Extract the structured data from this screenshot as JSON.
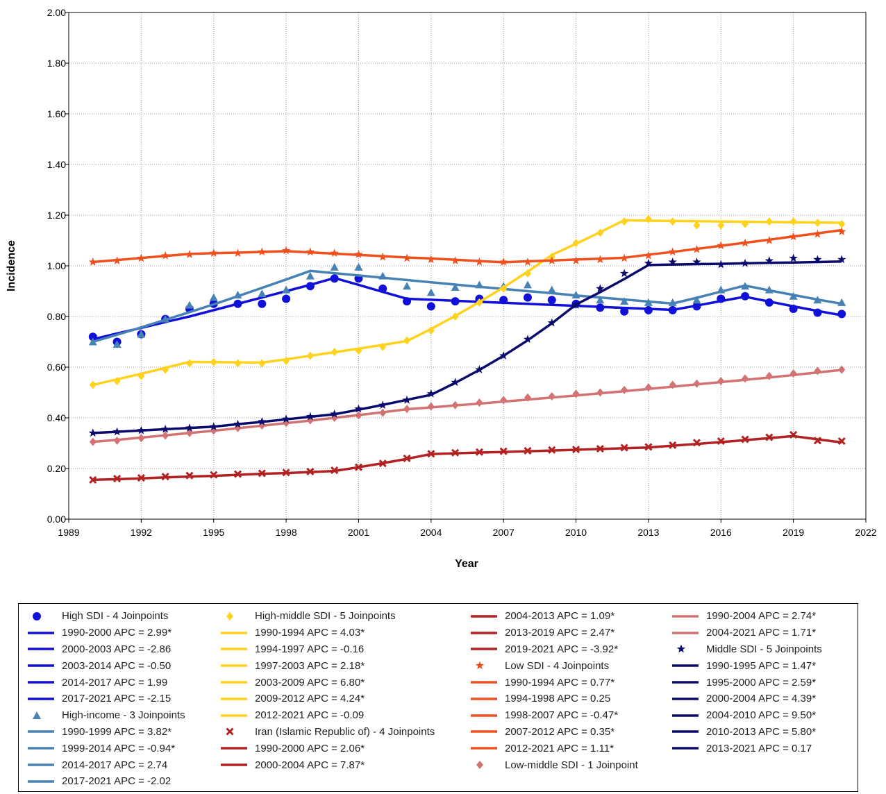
{
  "chart_data": {
    "type": "line",
    "xlabel": "Year",
    "ylabel": "Incidence",
    "xlim": [
      1989,
      2022
    ],
    "ylim": [
      0,
      2.0
    ],
    "x_ticks": [
      "1989",
      "1992",
      "1995",
      "1998",
      "2001",
      "2004",
      "2007",
      "2010",
      "2013",
      "2016",
      "2019",
      "2022"
    ],
    "y_ticks": [
      "0.00",
      "0.20",
      "0.40",
      "0.60",
      "0.80",
      "1.00",
      "1.20",
      "1.40",
      "1.60",
      "1.80",
      "2.00"
    ],
    "grid": true,
    "legend_position": "bottom",
    "series": [
      {
        "name": "High SDI - 4 Joinpoints",
        "color": "#1010d8",
        "marker": "circle",
        "x": [
          1990,
          1991,
          1992,
          1993,
          1994,
          1995,
          1996,
          1997,
          1998,
          1999,
          2000,
          2001,
          2002,
          2003,
          2004,
          2005,
          2006,
          2007,
          2008,
          2009,
          2010,
          2011,
          2012,
          2013,
          2014,
          2015,
          2016,
          2017,
          2018,
          2019,
          2020,
          2021
        ],
        "observed": [
          0.72,
          0.7,
          0.73,
          0.79,
          0.83,
          0.85,
          0.85,
          0.85,
          0.87,
          0.92,
          0.95,
          0.95,
          0.91,
          0.86,
          0.84,
          0.86,
          0.87,
          0.865,
          0.875,
          0.865,
          0.85,
          0.835,
          0.82,
          0.825,
          0.825,
          0.84,
          0.87,
          0.88,
          0.855,
          0.83,
          0.815,
          0.81
        ],
        "fit": [
          0.71,
          0.733,
          0.755,
          0.778,
          0.8,
          0.825,
          0.85,
          0.875,
          0.9,
          0.925,
          0.952,
          0.925,
          0.897,
          0.87,
          0.866,
          0.862,
          0.858,
          0.854,
          0.85,
          0.846,
          0.842,
          0.838,
          0.834,
          0.83,
          0.826,
          0.843,
          0.861,
          0.878,
          0.859,
          0.84,
          0.822,
          0.805
        ]
      },
      {
        "name": "High-income - 3 Joinpoints",
        "color": "#4682b4",
        "marker": "triangle",
        "x": [
          1990,
          1991,
          1992,
          1993,
          1994,
          1995,
          1996,
          1997,
          1998,
          1999,
          2000,
          2001,
          2002,
          2003,
          2004,
          2005,
          2006,
          2007,
          2008,
          2009,
          2010,
          2011,
          2012,
          2013,
          2014,
          2015,
          2016,
          2017,
          2018,
          2019,
          2020,
          2021
        ],
        "observed": [
          0.7,
          0.69,
          0.73,
          0.79,
          0.845,
          0.875,
          0.885,
          0.89,
          0.905,
          0.96,
          0.995,
          0.995,
          0.96,
          0.92,
          0.895,
          0.915,
          0.925,
          0.92,
          0.925,
          0.905,
          0.885,
          0.865,
          0.86,
          0.855,
          0.855,
          0.865,
          0.905,
          0.92,
          0.905,
          0.88,
          0.865,
          0.855
        ],
        "fit": [
          0.7,
          0.728,
          0.757,
          0.787,
          0.817,
          0.848,
          0.88,
          0.913,
          0.946,
          0.98,
          0.971,
          0.962,
          0.953,
          0.944,
          0.935,
          0.926,
          0.917,
          0.909,
          0.9,
          0.892,
          0.883,
          0.875,
          0.867,
          0.859,
          0.851,
          0.874,
          0.898,
          0.922,
          0.903,
          0.885,
          0.867,
          0.85
        ]
      },
      {
        "name": "High-middle SDI - 5 Joinpoints",
        "color": "#ffd21e",
        "marker": "diamond",
        "x": [
          1990,
          1991,
          1992,
          1993,
          1994,
          1995,
          1996,
          1997,
          1998,
          1999,
          2000,
          2001,
          2002,
          2003,
          2004,
          2005,
          2006,
          2007,
          2008,
          2009,
          2010,
          2011,
          2012,
          2013,
          2014,
          2015,
          2016,
          2017,
          2018,
          2019,
          2020,
          2021
        ],
        "observed": [
          0.53,
          0.545,
          0.565,
          0.59,
          0.615,
          0.62,
          0.615,
          0.615,
          0.625,
          0.645,
          0.66,
          0.665,
          0.68,
          0.705,
          0.745,
          0.8,
          0.855,
          0.91,
          0.97,
          1.035,
          1.09,
          1.13,
          1.175,
          1.185,
          1.175,
          1.16,
          1.16,
          1.165,
          1.175,
          1.175,
          1.17,
          1.165
        ],
        "fit": [
          0.53,
          0.552,
          0.574,
          0.597,
          0.621,
          0.62,
          0.619,
          0.618,
          0.631,
          0.645,
          0.659,
          0.673,
          0.688,
          0.703,
          0.751,
          0.802,
          0.857,
          0.915,
          0.977,
          1.043,
          1.087,
          1.133,
          1.18,
          1.178,
          1.177,
          1.176,
          1.175,
          1.174,
          1.173,
          1.172,
          1.171,
          1.17
        ]
      },
      {
        "name": "Iran (Islamic Republic of) - 4 Joinpoints",
        "color": "#b22222",
        "marker": "x",
        "x": [
          1990,
          1991,
          1992,
          1993,
          1994,
          1995,
          1996,
          1997,
          1998,
          1999,
          2000,
          2001,
          2002,
          2003,
          2004,
          2005,
          2006,
          2007,
          2008,
          2009,
          2010,
          2011,
          2012,
          2013,
          2014,
          2015,
          2016,
          2017,
          2018,
          2019,
          2020,
          2021
        ],
        "observed": [
          0.155,
          0.16,
          0.163,
          0.168,
          0.172,
          0.175,
          0.178,
          0.181,
          0.184,
          0.188,
          0.193,
          0.205,
          0.22,
          0.24,
          0.258,
          0.262,
          0.265,
          0.268,
          0.27,
          0.273,
          0.275,
          0.278,
          0.282,
          0.285,
          0.292,
          0.302,
          0.308,
          0.315,
          0.323,
          0.333,
          0.31,
          0.308
        ],
        "fit": [
          0.155,
          0.158,
          0.161,
          0.165,
          0.168,
          0.171,
          0.175,
          0.179,
          0.182,
          0.186,
          0.19,
          0.205,
          0.221,
          0.238,
          0.257,
          0.26,
          0.263,
          0.265,
          0.268,
          0.271,
          0.274,
          0.277,
          0.28,
          0.283,
          0.29,
          0.297,
          0.304,
          0.312,
          0.32,
          0.328,
          0.315,
          0.303
        ]
      },
      {
        "name": "Low SDI - 4 Joinpoints",
        "color": "#f0501e",
        "marker": "star",
        "x": [
          1990,
          1991,
          1992,
          1993,
          1994,
          1995,
          1996,
          1997,
          1998,
          1999,
          2000,
          2001,
          2002,
          2003,
          2004,
          2005,
          2006,
          2007,
          2008,
          2009,
          2010,
          2011,
          2012,
          2013,
          2014,
          2015,
          2016,
          2017,
          2018,
          2019,
          2020,
          2021
        ],
        "observed": [
          1.015,
          1.02,
          1.03,
          1.04,
          1.045,
          1.05,
          1.05,
          1.055,
          1.06,
          1.055,
          1.05,
          1.045,
          1.035,
          1.03,
          1.025,
          1.02,
          1.015,
          1.015,
          1.015,
          1.02,
          1.02,
          1.025,
          1.03,
          1.04,
          1.055,
          1.065,
          1.08,
          1.09,
          1.1,
          1.115,
          1.125,
          1.135
        ],
        "fit": [
          1.015,
          1.023,
          1.031,
          1.039,
          1.047,
          1.05,
          1.052,
          1.055,
          1.058,
          1.053,
          1.048,
          1.043,
          1.038,
          1.033,
          1.029,
          1.024,
          1.019,
          1.014,
          1.018,
          1.021,
          1.025,
          1.028,
          1.032,
          1.044,
          1.055,
          1.067,
          1.079,
          1.091,
          1.103,
          1.116,
          1.128,
          1.141
        ]
      },
      {
        "name": "Low-middle SDI - 1 Joinpoint",
        "color": "#d27272",
        "marker": "diamond",
        "x": [
          1990,
          1991,
          1992,
          1993,
          1994,
          1995,
          1996,
          1997,
          1998,
          1999,
          2000,
          2001,
          2002,
          2003,
          2004,
          2005,
          2006,
          2007,
          2008,
          2009,
          2010,
          2011,
          2012,
          2013,
          2014,
          2015,
          2016,
          2017,
          2018,
          2019,
          2020,
          2021
        ],
        "observed": [
          0.305,
          0.31,
          0.32,
          0.33,
          0.34,
          0.35,
          0.36,
          0.37,
          0.38,
          0.39,
          0.4,
          0.41,
          0.42,
          0.435,
          0.445,
          0.45,
          0.46,
          0.47,
          0.48,
          0.485,
          0.495,
          0.5,
          0.51,
          0.52,
          0.53,
          0.535,
          0.545,
          0.555,
          0.565,
          0.575,
          0.585,
          0.59
        ],
        "fit": [
          0.305,
          0.313,
          0.322,
          0.331,
          0.34,
          0.349,
          0.359,
          0.369,
          0.379,
          0.389,
          0.4,
          0.411,
          0.422,
          0.434,
          0.441,
          0.449,
          0.456,
          0.464,
          0.472,
          0.48,
          0.488,
          0.497,
          0.505,
          0.514,
          0.523,
          0.532,
          0.541,
          0.55,
          0.559,
          0.569,
          0.579,
          0.589
        ]
      },
      {
        "name": "Middle SDI - 5 Joinpoints",
        "color": "#0a0a6e",
        "marker": "star",
        "x": [
          1990,
          1991,
          1992,
          1993,
          1994,
          1995,
          1996,
          1997,
          1998,
          1999,
          2000,
          2001,
          2002,
          2003,
          2004,
          2005,
          2006,
          2007,
          2008,
          2009,
          2010,
          2011,
          2012,
          2013,
          2014,
          2015,
          2016,
          2017,
          2018,
          2019,
          2020,
          2021
        ],
        "observed": [
          0.34,
          0.345,
          0.35,
          0.355,
          0.36,
          0.365,
          0.375,
          0.385,
          0.395,
          0.405,
          0.415,
          0.435,
          0.45,
          0.47,
          0.495,
          0.54,
          0.59,
          0.645,
          0.71,
          0.775,
          0.845,
          0.91,
          0.97,
          1.01,
          1.015,
          1.015,
          1.005,
          1.01,
          1.02,
          1.03,
          1.025,
          1.025
        ],
        "fit": [
          0.34,
          0.345,
          0.35,
          0.355,
          0.36,
          0.365,
          0.375,
          0.384,
          0.394,
          0.404,
          0.414,
          0.432,
          0.451,
          0.471,
          0.491,
          0.538,
          0.589,
          0.645,
          0.706,
          0.773,
          0.847,
          0.896,
          0.948,
          1.003,
          1.005,
          1.007,
          1.008,
          1.01,
          1.012,
          1.013,
          1.015,
          1.017
        ]
      }
    ],
    "legend_columns": [
      [
        {
          "label": "High SDI - 4 Joinpoints",
          "color": "#1010d8",
          "kind": "circle"
        },
        {
          "label": "1990-2000 APC  =  2.99*",
          "color": "#1010d8",
          "kind": "line"
        },
        {
          "label": "2000-2003 APC  =  -2.86",
          "color": "#1010d8",
          "kind": "line"
        },
        {
          "label": "2003-2014 APC  =  -0.50",
          "color": "#1010d8",
          "kind": "line"
        },
        {
          "label": "2014-2017 APC  =  1.99",
          "color": "#1010d8",
          "kind": "line"
        },
        {
          "label": "2017-2021 APC  =  -2.15",
          "color": "#1010d8",
          "kind": "line"
        },
        {
          "label": "High-income - 3 Joinpoints",
          "color": "#4682b4",
          "kind": "triangle"
        },
        {
          "label": "1990-1999 APC  =  3.82*",
          "color": "#4682b4",
          "kind": "line"
        },
        {
          "label": "1999-2014 APC  =  -0.94*",
          "color": "#4682b4",
          "kind": "line"
        },
        {
          "label": "2014-2017 APC  =  2.74",
          "color": "#4682b4",
          "kind": "line"
        },
        {
          "label": "2017-2021 APC  =  -2.02",
          "color": "#4682b4",
          "kind": "line"
        }
      ],
      [
        {
          "label": "High-middle SDI - 5 Joinpoints",
          "color": "#ffd21e",
          "kind": "diamond"
        },
        {
          "label": "1990-1994 APC  =  4.03*",
          "color": "#ffd21e",
          "kind": "line"
        },
        {
          "label": "1994-1997 APC  =  -0.16",
          "color": "#ffd21e",
          "kind": "line"
        },
        {
          "label": "1997-2003 APC  =  2.18*",
          "color": "#ffd21e",
          "kind": "line"
        },
        {
          "label": "2003-2009 APC  =  6.80*",
          "color": "#ffd21e",
          "kind": "line"
        },
        {
          "label": "2009-2012 APC  =  4.24*",
          "color": "#ffd21e",
          "kind": "line"
        },
        {
          "label": "2012-2021 APC  =  -0.09",
          "color": "#ffd21e",
          "kind": "line"
        },
        {
          "label": "Iran (Islamic Republic of) - 4 Joinpoints",
          "color": "#b22222",
          "kind": "x"
        },
        {
          "label": "1990-2000 APC  =  2.06*",
          "color": "#b22222",
          "kind": "line"
        },
        {
          "label": "2000-2004 APC  =  7.87*",
          "color": "#b22222",
          "kind": "line"
        }
      ],
      [
        {
          "label": "2004-2013 APC  =  1.09*",
          "color": "#b22222",
          "kind": "line"
        },
        {
          "label": "2013-2019 APC  =  2.47*",
          "color": "#b22222",
          "kind": "line"
        },
        {
          "label": "2019-2021 APC  =  -3.92*",
          "color": "#b22222",
          "kind": "line"
        },
        {
          "label": "Low SDI - 4 Joinpoints",
          "color": "#f0501e",
          "kind": "star"
        },
        {
          "label": "1990-1994 APC  =  0.77*",
          "color": "#f0501e",
          "kind": "line"
        },
        {
          "label": "1994-1998 APC  =  0.25",
          "color": "#f0501e",
          "kind": "line"
        },
        {
          "label": "1998-2007 APC  =  -0.47*",
          "color": "#f0501e",
          "kind": "line"
        },
        {
          "label": "2007-2012 APC  =  0.35*",
          "color": "#f0501e",
          "kind": "line"
        },
        {
          "label": "2012-2021 APC  =  1.11*",
          "color": "#f0501e",
          "kind": "line"
        },
        {
          "label": "Low-middle SDI - 1 Joinpoint",
          "color": "#d27272",
          "kind": "diamond"
        }
      ],
      [
        {
          "label": "1990-2004 APC  =  2.74*",
          "color": "#d27272",
          "kind": "line"
        },
        {
          "label": "2004-2021 APC  =  1.71*",
          "color": "#d27272",
          "kind": "line"
        },
        {
          "label": "Middle SDI - 5 Joinpoints",
          "color": "#0a0a6e",
          "kind": "star"
        },
        {
          "label": "1990-1995 APC  =  1.47*",
          "color": "#0a0a6e",
          "kind": "line"
        },
        {
          "label": "1995-2000 APC  =  2.59*",
          "color": "#0a0a6e",
          "kind": "line"
        },
        {
          "label": "2000-2004 APC  =  4.39*",
          "color": "#0a0a6e",
          "kind": "line"
        },
        {
          "label": "2004-2010 APC  =  9.50*",
          "color": "#0a0a6e",
          "kind": "line"
        },
        {
          "label": "2010-2013 APC  =  5.80*",
          "color": "#0a0a6e",
          "kind": "line"
        },
        {
          "label": "2013-2021 APC  =  0.17",
          "color": "#0a0a6e",
          "kind": "line"
        }
      ]
    ]
  }
}
